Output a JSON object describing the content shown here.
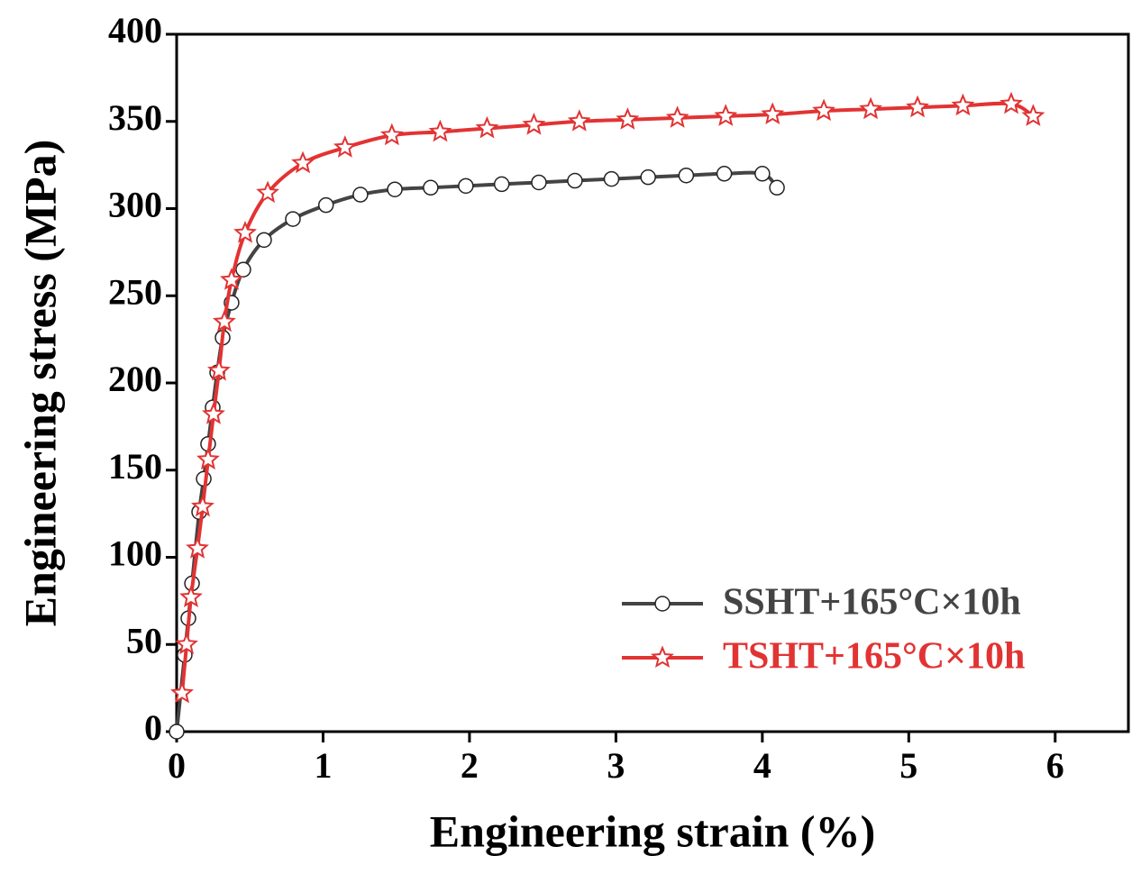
{
  "chart_data": {
    "type": "line",
    "x_label": "Engineering strain (%)",
    "y_label": "Engineering stress (MPa)",
    "xlim": [
      0,
      6.5
    ],
    "xticks": [
      0,
      1,
      2,
      3,
      4,
      5,
      6
    ],
    "ylim": [
      0,
      400
    ],
    "yticks": [
      0,
      50,
      100,
      150,
      200,
      250,
      300,
      350,
      400
    ],
    "legend": "lower right",
    "series": [
      {
        "name": "SSHT+165°C×10h",
        "color": "#444444",
        "marker": "circle",
        "x": [
          0,
          0.055,
          0.08,
          0.105,
          0.154,
          0.185,
          0.215,
          0.246,
          0.277,
          0.314,
          0.375,
          0.455,
          0.597,
          0.794,
          1.02,
          1.255,
          1.49,
          1.735,
          1.975,
          2.22,
          2.474,
          2.72,
          2.97,
          3.22,
          3.48,
          3.74,
          4.0,
          4.1
        ],
        "values": [
          0,
          44,
          65,
          85,
          126,
          145,
          165,
          186,
          206,
          226,
          246,
          265,
          282,
          294,
          302,
          308,
          311,
          312,
          313,
          314,
          315,
          316,
          317,
          318,
          319,
          320,
          320,
          312
        ]
      },
      {
        "name": "TSHT+165°C×10h",
        "color": "#e23333",
        "marker": "star",
        "x": [
          0.037,
          0.068,
          0.098,
          0.142,
          0.178,
          0.215,
          0.252,
          0.289,
          0.326,
          0.375,
          0.468,
          0.622,
          0.862,
          1.15,
          1.47,
          1.8,
          2.12,
          2.44,
          2.75,
          3.08,
          3.42,
          3.75,
          4.07,
          4.42,
          4.74,
          5.06,
          5.37,
          5.7,
          5.85
        ],
        "values": [
          22,
          50,
          77,
          105,
          129,
          156,
          182,
          207,
          235,
          259,
          286,
          309,
          326,
          335,
          342,
          344,
          346,
          348,
          350,
          351,
          352,
          353,
          354,
          356,
          357,
          358,
          359,
          360,
          353
        ]
      }
    ]
  }
}
